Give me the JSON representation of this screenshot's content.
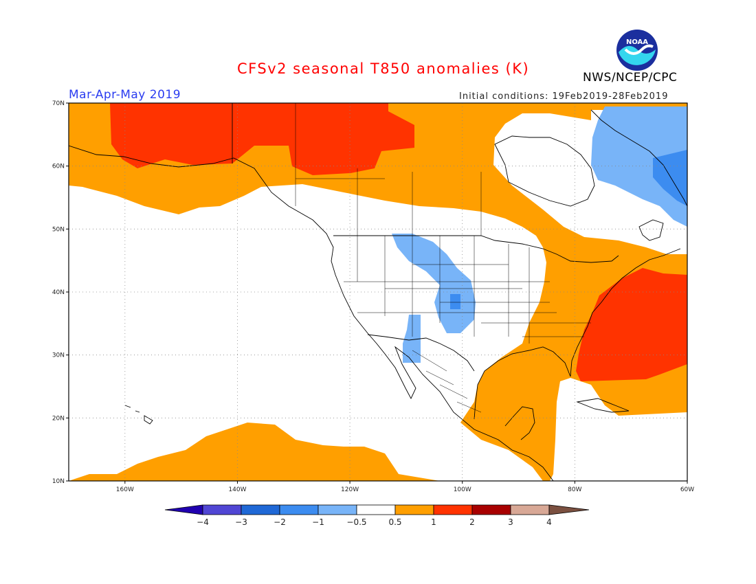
{
  "header": {
    "title": "CFSv2 seasonal T850 anomalies (K)",
    "season": "Mar-Apr-May 2019",
    "initial_conditions": "Initial conditions: 19Feb2019-28Feb2019",
    "organization": "NWS/NCEP/CPC",
    "logo_text": "NOAA",
    "logo_icon": "noaa-logo-icon"
  },
  "map": {
    "projection": "equirectangular",
    "lon_range": [
      -170,
      -60
    ],
    "lat_range": [
      10,
      70
    ],
    "lat_ticks": [
      "70N",
      "60N",
      "50N",
      "40N",
      "30N",
      "20N",
      "10N"
    ],
    "lon_ticks": [
      "160W",
      "140W",
      "120W",
      "100W",
      "80W",
      "60W"
    ],
    "grid": "dotted",
    "anomaly_regions": [
      {
        "category": "1 to 2",
        "color": "#ff3300",
        "description": "Alaska and western Canada north",
        "lonlat": [
          [
            -163,
            70
          ],
          [
            -130,
            70
          ],
          [
            -130,
            67
          ],
          [
            -120,
            67
          ],
          [
            -115,
            66
          ],
          [
            -108,
            65
          ],
          [
            -108,
            62
          ],
          [
            -113,
            61
          ],
          [
            -123,
            61
          ],
          [
            -132,
            60
          ],
          [
            -140,
            61
          ],
          [
            -150,
            60
          ],
          [
            -158,
            60
          ],
          [
            -163,
            62
          ],
          [
            -163,
            70
          ]
        ]
      },
      {
        "category": "1 to 2",
        "color": "#ff3300",
        "description": "US East Coast and western Atlantic",
        "lonlat": [
          [
            -76,
            37
          ],
          [
            -72,
            40
          ],
          [
            -68,
            42
          ],
          [
            -60,
            43
          ],
          [
            -60,
            25
          ],
          [
            -65,
            25
          ],
          [
            -70,
            24
          ],
          [
            -77,
            23
          ],
          [
            -80,
            24
          ],
          [
            -80,
            29
          ],
          [
            -78,
            32
          ],
          [
            -77,
            35
          ],
          [
            -76,
            37
          ]
        ]
      },
      {
        "category": "-1 to -0.5",
        "color": "#78b4f8",
        "description": "Northern Plains to southern Rockies",
        "lonlat": [
          [
            -112,
            49
          ],
          [
            -106,
            48
          ],
          [
            -104,
            45
          ],
          [
            -101,
            43
          ],
          [
            -99,
            41
          ],
          [
            -99,
            37
          ],
          [
            -101,
            35
          ],
          [
            -103,
            34
          ],
          [
            -105,
            35
          ],
          [
            -107,
            36
          ],
          [
            -107,
            37
          ],
          [
            -104,
            39
          ],
          [
            -103,
            41
          ],
          [
            -105,
            43
          ],
          [
            -108,
            45
          ],
          [
            -111,
            47
          ],
          [
            -112,
            49
          ]
        ]
      },
      {
        "category": "-1 to -0.5",
        "color": "#78b4f8",
        "description": "Arizona",
        "lonlat": [
          [
            -110,
            36
          ],
          [
            -109,
            36
          ],
          [
            -109,
            33
          ],
          [
            -108,
            31
          ],
          [
            -110,
            31
          ],
          [
            -110,
            36
          ]
        ]
      },
      {
        "category": "-1 to -0.5",
        "color": "#78b4f8",
        "description": "Eastern Canada and Labrador Sea",
        "lonlat": [
          [
            -77,
            70
          ],
          [
            -60,
            70
          ],
          [
            -60,
            50
          ],
          [
            -62,
            53
          ],
          [
            -66,
            55
          ],
          [
            -70,
            57
          ],
          [
            -74,
            60
          ],
          [
            -78,
            62
          ],
          [
            -79,
            65
          ],
          [
            -77,
            70
          ]
        ]
      },
      {
        "category": "-2 to -1",
        "color": "#3c8cf0",
        "description": "Labrador small area",
        "lonlat": [
          [
            -66,
            60
          ],
          [
            -60,
            60
          ],
          [
            -60,
            57
          ],
          [
            -64,
            58
          ],
          [
            -66,
            60
          ]
        ]
      }
    ]
  },
  "colorbar": {
    "labels": [
      "-4",
      "-3",
      "-2",
      "-1",
      "-0.5",
      "0.5",
      "1",
      "2",
      "3",
      "4"
    ],
    "colors": [
      "#2000b0",
      "#5046d4",
      "#1f68d6",
      "#3c8cf0",
      "#78b4f8",
      "#ffffff",
      "#ff9f00",
      "#ff3300",
      "#a80000",
      "#d8a896",
      "#7b5040"
    ]
  }
}
